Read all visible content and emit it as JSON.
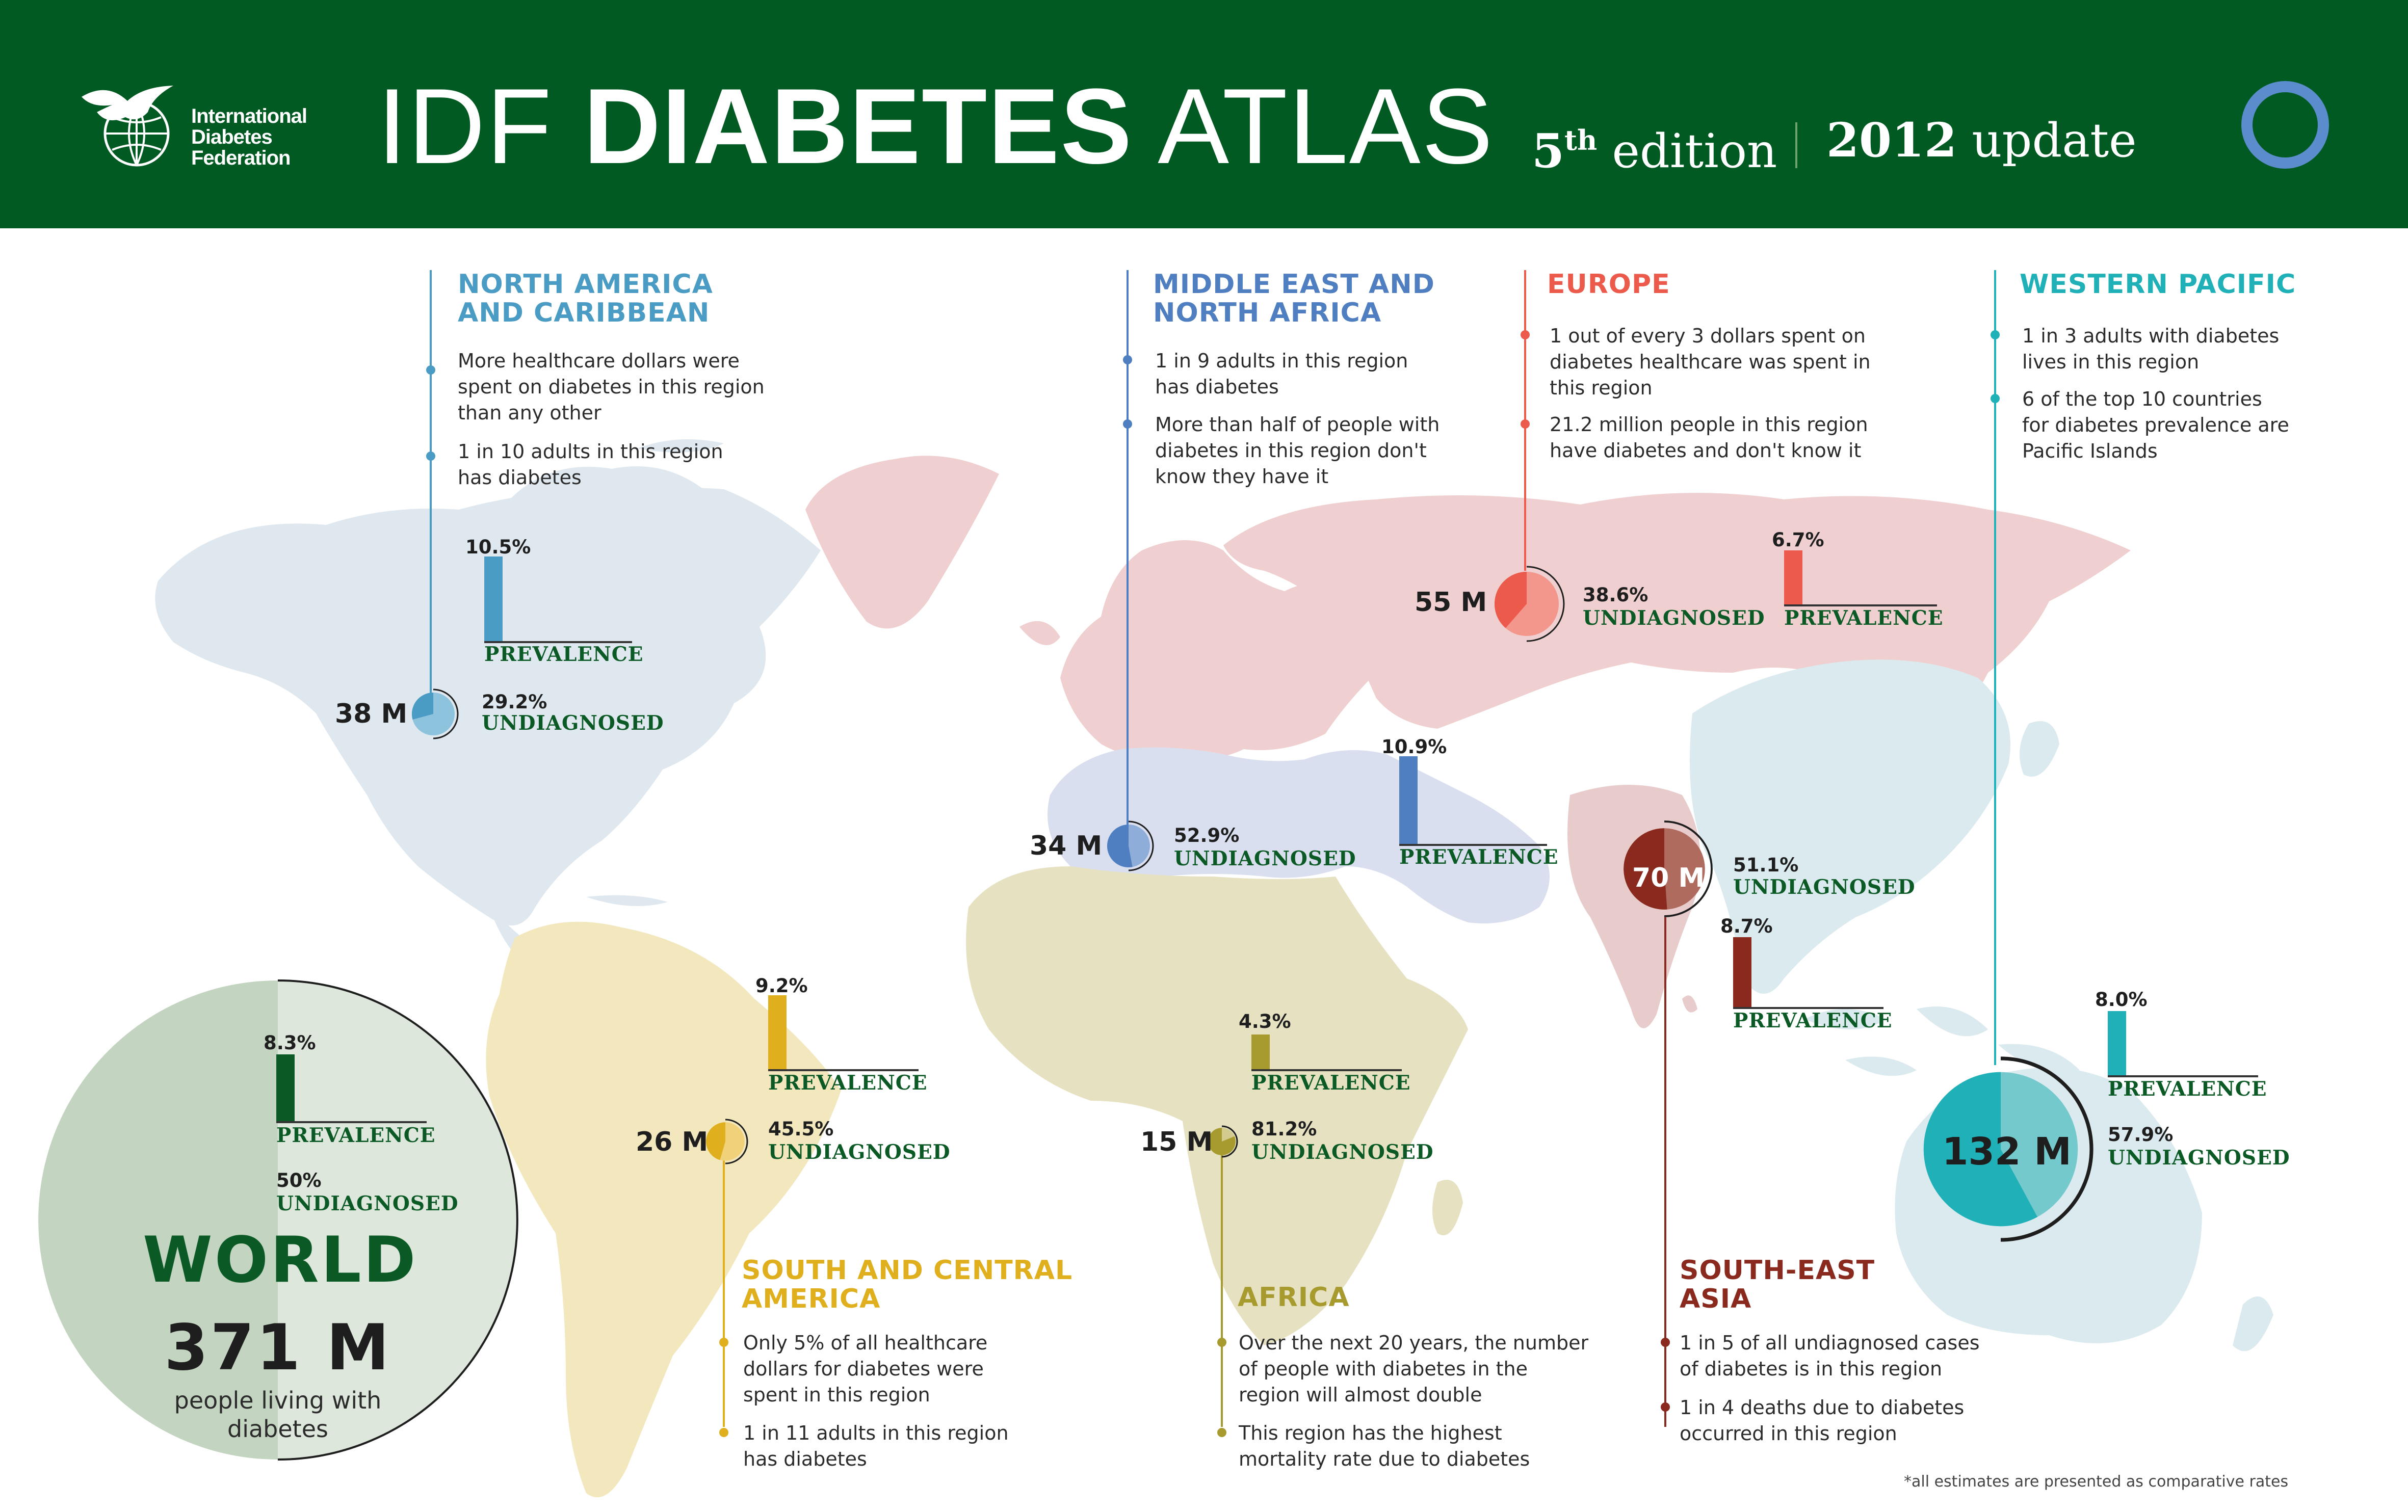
{
  "header": {
    "org_name": "International\nDiabetes\nFederation",
    "title_part1": "IDF ",
    "title_part2": "DIABETES",
    "title_part3": " ATLAS",
    "edition_num": "5",
    "edition_sup": "th",
    "edition_word": " edition",
    "update_year": "2012",
    "update_word": " update"
  },
  "labels": {
    "prevalence": "PREVALENCE",
    "undiagnosed": "UNDIAGNOSED"
  },
  "colors": {
    "header_green": "#005a22",
    "north_america": "#4a9cc4",
    "mena": "#4f7fc0",
    "europe": "#ec5a4b",
    "western_pacific": "#1fb1b7",
    "south_central_america": "#e0af1d",
    "africa": "#a79a2f",
    "south_east_asia": "#8a2a1e",
    "world": "#0b5a25"
  },
  "regions": {
    "na": {
      "name": "NORTH AMERICA\nAND CARIBBEAN",
      "facts": [
        "More healthcare dollars were\nspent on diabetes in this region\nthan any other",
        "1 in 10 adults in this region\nhas diabetes"
      ],
      "prevalence_label": "10.5%",
      "undiagnosed_label": "29.2%",
      "count_label": "38 M"
    },
    "mena": {
      "name": "MIDDLE EAST AND\nNORTH AFRICA",
      "facts": [
        "1 in 9 adults in this region\nhas diabetes",
        "More than half of people with\ndiabetes in this region don't\nknow they have it"
      ],
      "prevalence_label": "10.9%",
      "undiagnosed_label": "52.9%",
      "count_label": "34 M"
    },
    "eur": {
      "name": "EUROPE",
      "facts": [
        "1 out of every 3 dollars spent on\ndiabetes healthcare was spent in\nthis region",
        "21.2 million people in this region\nhave diabetes and don't know it"
      ],
      "prevalence_label": "6.7%",
      "undiagnosed_label": "38.6%",
      "count_label": "55 M"
    },
    "wp": {
      "name": "WESTERN PACIFIC",
      "facts": [
        "1 in 3 adults with diabetes\nlives in this region",
        "6 of the top 10 countries\nfor diabetes prevalence are\nPacific Islands"
      ],
      "prevalence_label": "8.0%",
      "undiagnosed_label": "57.9%",
      "count_label": "132 M"
    },
    "sca": {
      "name": "SOUTH AND CENTRAL\nAMERICA",
      "facts": [
        "Only 5% of all healthcare\ndollars for diabetes were\nspent in this region",
        "1 in 11 adults in this region\nhas diabetes"
      ],
      "prevalence_label": "9.2%",
      "undiagnosed_label": "45.5%",
      "count_label": "26 M"
    },
    "afr": {
      "name": "AFRICA",
      "facts": [
        "Over the next 20 years, the number\nof people with diabetes in the\nregion will almost double",
        "This region has the highest\nmortality rate due to diabetes"
      ],
      "prevalence_label": "4.3%",
      "undiagnosed_label": "81.2%",
      "count_label": "15 M"
    },
    "sea": {
      "name": "SOUTH-EAST\nASIA",
      "facts": [
        "1 in 5 of all undiagnosed cases\nof diabetes is in this region",
        "1 in 4 deaths due to diabetes\noccurred in this region"
      ],
      "prevalence_label": "8.7%",
      "undiagnosed_label": "51.1%",
      "count_label": "70 M"
    }
  },
  "world": {
    "title": "WORLD",
    "count_label": "371 M",
    "subtitle": "people living with\ndiabetes",
    "prevalence_label": "8.3%",
    "undiagnosed_label": "50%"
  },
  "footnote": "*all estimates are presented as comparative rates",
  "chart_data": {
    "type": "bar",
    "categories": [
      "North America and Caribbean",
      "Middle East and North Africa",
      "Europe",
      "Western Pacific",
      "South and Central America",
      "Africa",
      "South-East Asia",
      "World"
    ],
    "series": [
      {
        "name": "Prevalence",
        "unit": "%",
        "values": [
          10.5,
          10.9,
          6.7,
          8.0,
          9.2,
          4.3,
          8.7,
          8.3
        ]
      },
      {
        "name": "Undiagnosed",
        "unit": "%",
        "values": [
          29.2,
          52.9,
          38.6,
          57.9,
          45.5,
          81.2,
          51.1,
          50
        ]
      },
      {
        "unit": "M",
        "values": [
          38,
          34,
          55,
          132,
          26,
          15,
          70,
          371
        ]
      }
    ]
  }
}
